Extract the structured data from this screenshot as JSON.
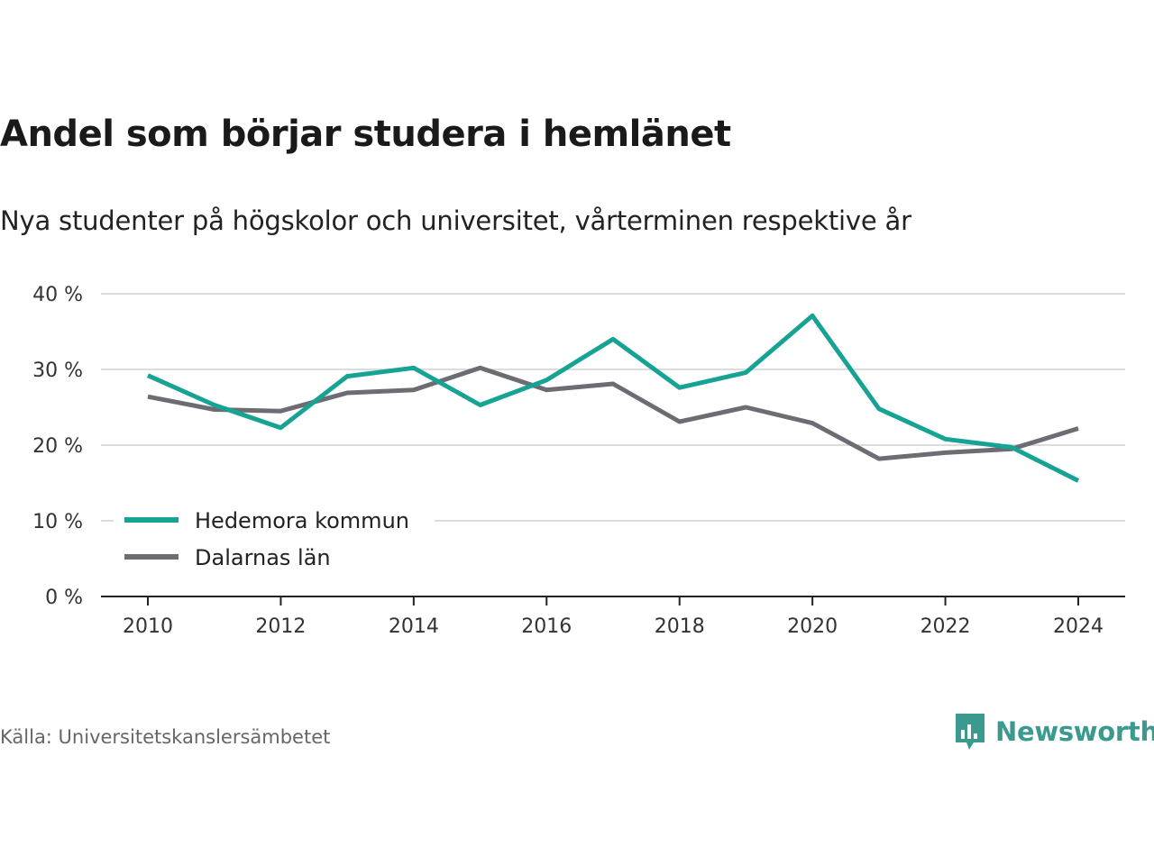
{
  "title": "Andel som börjar studera i hemlänet",
  "subtitle": "Nya studenter på högskolor och universitet, vårterminen respektive år",
  "source": "Källa: Universitetskanslersämbetet",
  "brand": {
    "name": "Newsworthy",
    "icon": "newsworthy-logo-icon",
    "color": "#3a9a8d"
  },
  "chart_data": {
    "type": "line",
    "x": [
      2010,
      2011,
      2012,
      2013,
      2014,
      2015,
      2016,
      2017,
      2018,
      2019,
      2020,
      2021,
      2022,
      2023,
      2024
    ],
    "x_ticks": [
      "2010",
      "2012",
      "2014",
      "2016",
      "2018",
      "2020",
      "2022",
      "2024"
    ],
    "y_ticks": [
      "0 %",
      "10 %",
      "20 %",
      "30 %",
      "40 %"
    ],
    "ylim": [
      0,
      40
    ],
    "grid": true,
    "legend_position": "bottom-left",
    "series": [
      {
        "name": "Hedemora kommun",
        "color": "#16a394",
        "values": [
          29.2,
          25.3,
          22.3,
          29.1,
          30.2,
          25.3,
          28.6,
          34.0,
          27.6,
          29.6,
          37.1,
          24.8,
          20.8,
          19.7,
          15.3
        ]
      },
      {
        "name": "Dalarnas län",
        "color": "#6e6c73",
        "values": [
          26.4,
          24.7,
          24.5,
          26.9,
          27.3,
          30.2,
          27.3,
          28.1,
          23.1,
          25.0,
          22.9,
          18.2,
          19.0,
          19.5,
          22.2
        ]
      }
    ]
  }
}
